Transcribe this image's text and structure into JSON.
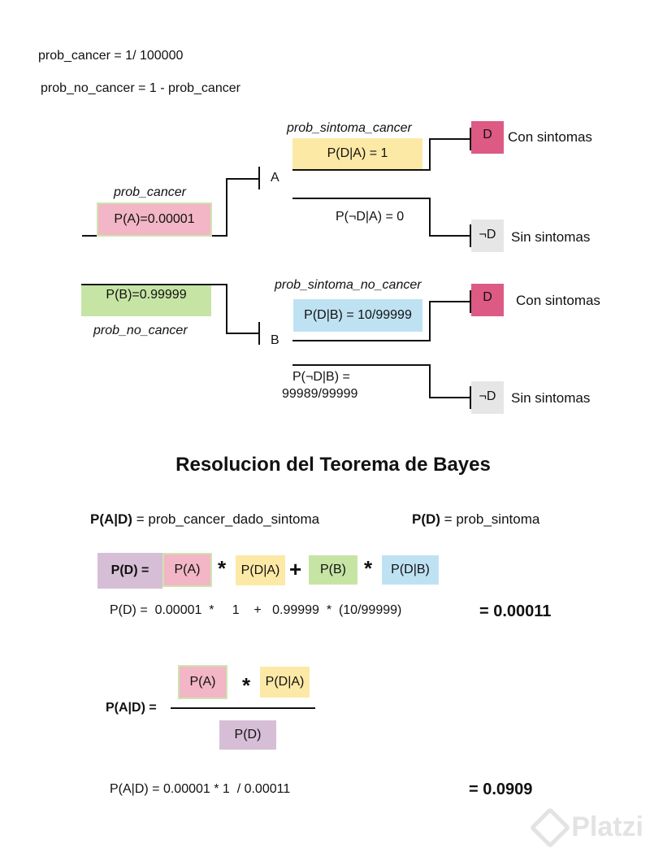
{
  "definitions": {
    "prob_cancer": "prob_cancer     =  1/ 100000",
    "prob_no_cancer": "prob_no_cancer =  1 - prob_cancer"
  },
  "tree": {
    "root_a": {
      "name": "prob_cancer",
      "value": "P(A)=0.00001"
    },
    "root_b": {
      "value": "P(B)=0.99999",
      "name": "prob_no_cancer"
    },
    "node_a": "A",
    "node_b": "B",
    "branch_a_yes": {
      "name": "prob_sintoma_cancer",
      "value": "P(D|A) = 1"
    },
    "branch_a_no": {
      "value": "P(¬D|A) = 0"
    },
    "branch_b_yes": {
      "name": "prob_sintoma_no_cancer",
      "value": "P(D|B) = 10/99999"
    },
    "branch_b_no": {
      "line1": "P(¬D|B) =",
      "line2": "99989/99999"
    },
    "leaves": [
      {
        "symbol": "D",
        "label": "Con sintomas"
      },
      {
        "symbol": "¬D",
        "label": "Sin sintomas"
      },
      {
        "symbol": "D",
        "label": "Con sintomas"
      },
      {
        "symbol": "¬D",
        "label": "Sin sintomas"
      }
    ]
  },
  "resolution": {
    "title": "Resolucion del Teorema de Bayes",
    "def_pad": {
      "bold": "P(A|D)",
      "rest": " = prob_cancer_dado_sintoma"
    },
    "def_pd": {
      "bold": "P(D)",
      "rest": " = prob_sintoma"
    },
    "formula": {
      "lhs": "P(D) =",
      "pa": "P(A)",
      "times1": "*",
      "pda": "P(D|A)",
      "plus": "+",
      "pb": "P(B)",
      "times2": "*",
      "pdb": "P(D|B)"
    },
    "numeric_pd": "P(D) =  0.00001  *     1    +   0.99999  *  (10/99999)",
    "result_pd": "= 0.00011",
    "fraction": {
      "lhs": "P(A|D) =",
      "num_pa": "P(A)",
      "times": "*",
      "num_pda": "P(D|A)",
      "den": "P(D)"
    },
    "numeric_pad": "P(A|D) = 0.00001 * 1  / 0.00011",
    "result_pad": "= 0.0909"
  },
  "watermark": "Platzi",
  "colors": {
    "pink": "#f2b6c6",
    "yellow": "#fde9a6",
    "green": "#c6e5a5",
    "blue": "#bfe2f3",
    "purple": "#d6bfd6",
    "magenta": "#dc5a84",
    "grey": "#e6e6e6"
  }
}
